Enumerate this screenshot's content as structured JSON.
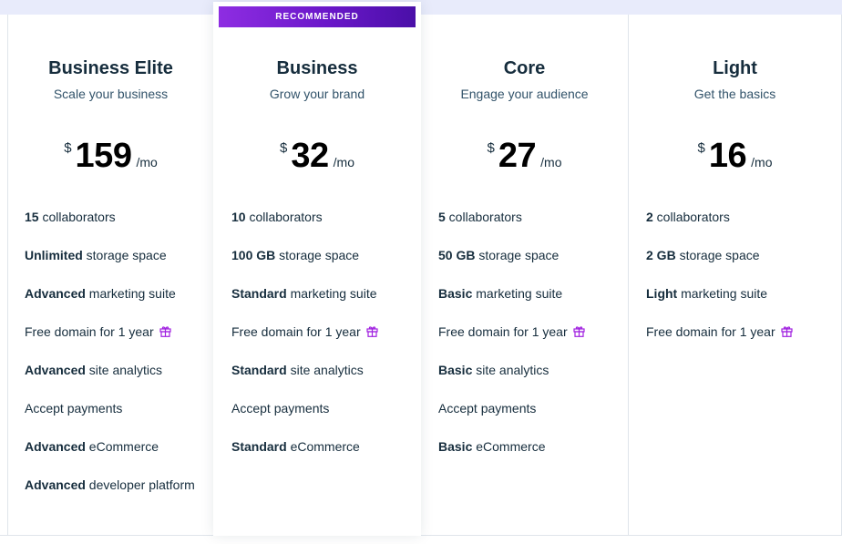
{
  "ribbon": "RECOMMENDED",
  "colors": {
    "accent": "#7a20d8",
    "text": "#162d3d",
    "border": "#dfe5eb"
  },
  "plans": [
    {
      "name": "Business Elite",
      "tagline": "Scale your business",
      "currency": "$",
      "price": "159",
      "period": "/mo",
      "features": [
        {
          "bold": "15",
          "text": " collaborators"
        },
        {
          "bold": "Unlimited",
          "text": " storage space"
        },
        {
          "bold": "Advanced",
          "text": " marketing suite"
        },
        {
          "bold": "",
          "text": "Free domain for 1 year",
          "icon": "gift-icon"
        },
        {
          "bold": "Advanced",
          "text": " site analytics"
        },
        {
          "bold": "",
          "text": "Accept payments"
        },
        {
          "bold": "Advanced",
          "text": " eCommerce"
        },
        {
          "bold": "Advanced",
          "text": " developer platform"
        }
      ]
    },
    {
      "name": "Business",
      "tagline": "Grow your brand",
      "currency": "$",
      "price": "32",
      "period": "/mo",
      "features": [
        {
          "bold": "10",
          "text": " collaborators"
        },
        {
          "bold": "100 GB",
          "text": " storage space"
        },
        {
          "bold": "Standard",
          "text": " marketing suite"
        },
        {
          "bold": "",
          "text": "Free domain for 1 year",
          "icon": "gift-icon"
        },
        {
          "bold": "Standard",
          "text": " site analytics"
        },
        {
          "bold": "",
          "text": "Accept payments"
        },
        {
          "bold": "Standard",
          "text": " eCommerce"
        }
      ]
    },
    {
      "name": "Core",
      "tagline": "Engage your audience",
      "currency": "$",
      "price": "27",
      "period": "/mo",
      "features": [
        {
          "bold": "5",
          "text": " collaborators"
        },
        {
          "bold": "50 GB",
          "text": " storage space"
        },
        {
          "bold": "Basic",
          "text": " marketing suite"
        },
        {
          "bold": "",
          "text": "Free domain for 1 year",
          "icon": "gift-icon"
        },
        {
          "bold": "Basic",
          "text": " site analytics"
        },
        {
          "bold": "",
          "text": "Accept payments"
        },
        {
          "bold": "Basic",
          "text": " eCommerce"
        }
      ]
    },
    {
      "name": "Light",
      "tagline": "Get the basics",
      "currency": "$",
      "price": "16",
      "period": "/mo",
      "features": [
        {
          "bold": "2",
          "text": " collaborators"
        },
        {
          "bold": "2 GB",
          "text": " storage space"
        },
        {
          "bold": "Light",
          "text": " marketing suite"
        },
        {
          "bold": "",
          "text": "Free domain for 1 year",
          "icon": "gift-icon"
        }
      ]
    }
  ]
}
